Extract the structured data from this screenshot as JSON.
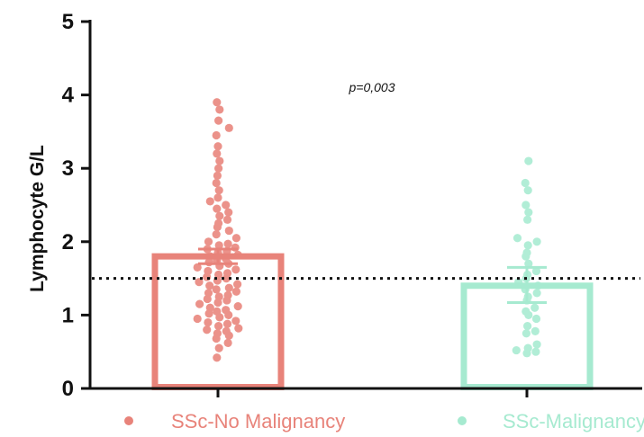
{
  "chart_data": {
    "type": "bar",
    "ylabel": "Lymphocyte G/L",
    "ylim": [
      0,
      5
    ],
    "yticks": [
      "0",
      "1",
      "2",
      "3",
      "4",
      "5"
    ],
    "annotation": "p=0,003",
    "reference_line": {
      "y": 1.5,
      "style": "dotted",
      "color": "#111111"
    },
    "categories": [
      "SSc-No Malignancy",
      "SSc-Malignancy"
    ],
    "series": [
      {
        "name": "SSc-No Malignancy",
        "color": "#e8837a",
        "bar_value": 1.8,
        "error": [
          1.7,
          1.9
        ],
        "points": [
          0.42,
          0.55,
          0.62,
          0.68,
          0.72,
          0.75,
          0.78,
          0.8,
          0.82,
          0.85,
          0.88,
          0.9,
          0.92,
          0.95,
          0.97,
          1.0,
          1.02,
          1.05,
          1.07,
          1.1,
          1.12,
          1.15,
          1.17,
          1.2,
          1.22,
          1.25,
          1.27,
          1.3,
          1.32,
          1.35,
          1.37,
          1.4,
          1.42,
          1.45,
          1.47,
          1.5,
          1.52,
          1.55,
          1.57,
          1.6,
          1.62,
          1.65,
          1.67,
          1.7,
          1.72,
          1.75,
          1.77,
          1.8,
          1.82,
          1.85,
          1.87,
          1.9,
          1.92,
          1.95,
          1.97,
          2.0,
          2.05,
          2.1,
          2.15,
          2.2,
          2.25,
          2.3,
          2.35,
          2.4,
          2.45,
          2.5,
          2.55,
          2.6,
          2.7,
          2.8,
          2.9,
          3.0,
          3.1,
          3.2,
          3.3,
          3.45,
          3.55,
          3.65,
          3.8,
          3.9
        ]
      },
      {
        "name": "SSc-Malignancy",
        "color": "#a6ead0",
        "bar_value": 1.4,
        "error": [
          1.17,
          1.65
        ],
        "points": [
          0.48,
          0.5,
          0.52,
          0.55,
          0.6,
          0.75,
          0.78,
          0.85,
          0.95,
          1.0,
          1.05,
          1.1,
          1.2,
          1.25,
          1.3,
          1.35,
          1.4,
          1.45,
          1.5,
          1.55,
          1.6,
          1.7,
          1.8,
          1.85,
          1.95,
          2.0,
          2.05,
          2.3,
          2.4,
          2.5,
          2.7,
          2.8,
          3.1
        ]
      }
    ]
  }
}
